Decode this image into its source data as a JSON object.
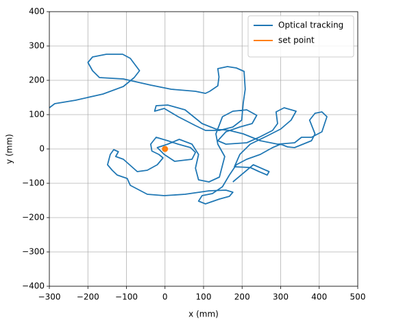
{
  "chart_data": {
    "type": "line",
    "xlabel": "x (mm)",
    "ylabel": "y (mm)",
    "xlim": [
      -300,
      500
    ],
    "xticks": [
      {
        "value": -300,
        "label": "−300"
      },
      {
        "value": -200,
        "label": "−200"
      },
      {
        "value": -100,
        "label": "−100"
      },
      0,
      100,
      200,
      300,
      400,
      500
    ],
    "ylim": [
      -400,
      400
    ],
    "yticks": [
      {
        "value": -400,
        "label": "−400"
      },
      {
        "value": -300,
        "label": "−300"
      },
      {
        "value": -200,
        "label": "−200"
      },
      {
        "value": -100,
        "label": "−100"
      },
      0,
      100,
      200,
      300,
      400
    ],
    "grid": true,
    "legend": "upper right",
    "series": [
      {
        "name": "Optical tracking",
        "color": "#1f77b4",
        "x": [
          -300,
          -286,
          -232,
          -161,
          -108,
          -80,
          -66,
          -90,
          -110,
          -152,
          -188,
          -200,
          -188,
          -170,
          -108,
          -37,
          16,
          79,
          105,
          116,
          137,
          140,
          137,
          162,
          185,
          205,
          208,
          203,
          199,
          176,
          141,
          105,
          79,
          34,
          -2,
          -27,
          -23,
          7,
          52,
          96,
          132,
          167,
          203,
          247,
          292,
          336,
          354,
          380,
          407,
          420,
          407,
          389,
          375,
          389,
          380,
          336,
          318,
          300,
          279,
          247,
          212,
          185,
          167,
          149,
          123,
          96,
          87,
          105,
          141,
          167,
          176,
          158,
          114,
          52,
          -2,
          -46,
          -90,
          -98,
          -124,
          -137,
          -149,
          -142,
          -133,
          -121,
          -128,
          -108,
          -72,
          -46,
          -20,
          -5,
          -16,
          -34,
          -37,
          -23,
          7,
          34,
          66,
          79,
          70,
          25,
          -2,
          -20,
          7,
          37,
          70,
          87,
          79,
          87,
          114,
          141,
          155,
          137,
          132,
          149,
          176,
          212,
          238,
          226,
          194,
          158,
          137,
          158,
          212,
          244,
          279,
          292,
          288,
          309,
          340,
          327,
          300,
          265,
          221,
          194,
          180,
          221,
          244,
          265,
          270,
          229,
          176
        ],
        "y": [
          120,
          132,
          142,
          160,
          182,
          208,
          228,
          264,
          276,
          276,
          268,
          252,
          228,
          208,
          204,
          186,
          174,
          168,
          162,
          168,
          184,
          210,
          234,
          240,
          236,
          226,
          174,
          134,
          84,
          64,
          54,
          54,
          68,
          94,
          118,
          110,
          126,
          128,
          114,
          74,
          58,
          54,
          44,
          24,
          14,
          18,
          34,
          34,
          50,
          94,
          108,
          104,
          84,
          44,
          24,
          4,
          6,
          14,
          4,
          -16,
          -30,
          -46,
          -76,
          -110,
          -130,
          -136,
          -152,
          -160,
          -146,
          -138,
          -126,
          -120,
          -122,
          -132,
          -136,
          -132,
          -106,
          -86,
          -76,
          -62,
          -46,
          -16,
          -2,
          -8,
          -22,
          -30,
          -66,
          -62,
          -46,
          -26,
          -16,
          -6,
          14,
          34,
          24,
          14,
          4,
          -10,
          -30,
          -36,
          -16,
          4,
          14,
          28,
          14,
          -16,
          -56,
          -90,
          -96,
          -82,
          -22,
          14,
          44,
          94,
          110,
          114,
          98,
          74,
          64,
          50,
          24,
          14,
          18,
          34,
          54,
          74,
          108,
          120,
          110,
          84,
          58,
          38,
          14,
          -16,
          -52,
          -54,
          -66,
          -76,
          -66,
          -46,
          -96
        ]
      },
      {
        "name": "set point",
        "color": "#ff7f0e",
        "marker": "o",
        "x": [
          0
        ],
        "y": [
          0
        ]
      }
    ]
  }
}
